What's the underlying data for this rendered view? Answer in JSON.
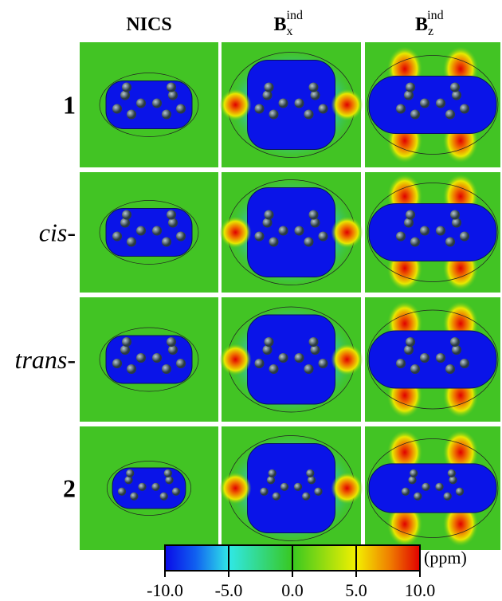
{
  "columns": [
    {
      "base": "NICS"
    },
    {
      "base": "B",
      "sub": "x",
      "sup": "ind"
    },
    {
      "base": "B",
      "sub": "z",
      "sup": "ind"
    }
  ],
  "rows": [
    {
      "label": "1"
    },
    {
      "italic": "cis",
      "suffix": "-"
    },
    {
      "italic": "trans",
      "suffix": "-"
    },
    {
      "label": "2"
    }
  ],
  "colorbar": {
    "unit": "(ppm)",
    "lim": [
      -10,
      10
    ],
    "ticks": [
      {
        "value": -10,
        "label": "-10.0"
      },
      {
        "value": -5,
        "label": "-5.0"
      },
      {
        "value": 0,
        "label": "0.0"
      },
      {
        "value": 5,
        "label": "5.0"
      },
      {
        "value": 10,
        "label": "10.0"
      }
    ]
  }
}
